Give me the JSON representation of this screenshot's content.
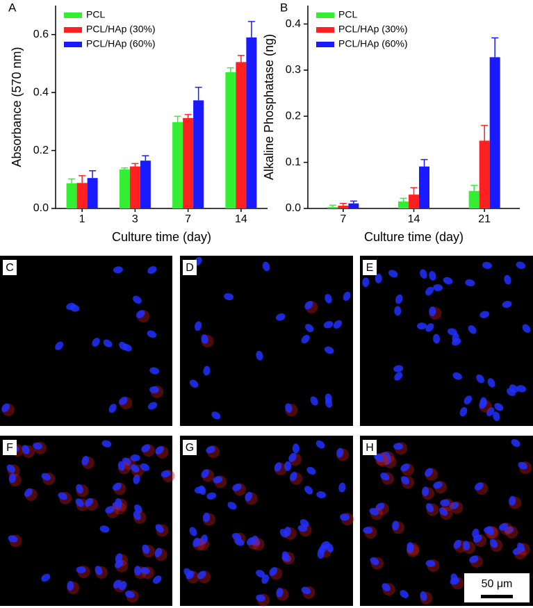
{
  "chart_data": [
    {
      "type": "bar",
      "panel_label": "A",
      "ylabel": "Absorbance (570 nm)",
      "xlabel": "Culture time (day)",
      "categories": [
        "1",
        "3",
        "7",
        "14"
      ],
      "series": [
        {
          "name": "PCL",
          "color": "#33ee33",
          "values": [
            0.087,
            0.135,
            0.298,
            0.47
          ],
          "errors": [
            0.015,
            0.005,
            0.02,
            0.015
          ]
        },
        {
          "name": "PCL/HAp (30%)",
          "color": "#ff2020",
          "values": [
            0.088,
            0.145,
            0.312,
            0.505
          ],
          "errors": [
            0.025,
            0.01,
            0.012,
            0.023
          ]
        },
        {
          "name": "PCL/HAp (60%)",
          "color": "#1a1aff",
          "values": [
            0.105,
            0.165,
            0.373,
            0.59
          ],
          "errors": [
            0.025,
            0.017,
            0.045,
            0.055
          ]
        }
      ],
      "ylim": [
        0,
        0.7
      ],
      "yticks": [
        {
          "value": 0,
          "label": "0.0"
        },
        0.2,
        0.4,
        0.6
      ],
      "legend": "upper-left"
    },
    {
      "type": "bar",
      "panel_label": "B",
      "ylabel": "Alkaline Phosphatase (ng)",
      "xlabel": "Culture time (day)",
      "categories": [
        "7",
        "14",
        "21"
      ],
      "series": [
        {
          "name": "PCL",
          "color": "#33ee33",
          "values": [
            0.003,
            0.015,
            0.038
          ],
          "errors": [
            0.004,
            0.007,
            0.012
          ]
        },
        {
          "name": "PCL/HAp (30%)",
          "color": "#ff2020",
          "values": [
            0.006,
            0.03,
            0.147
          ],
          "errors": [
            0.005,
            0.015,
            0.033
          ]
        },
        {
          "name": "PCL/HAp (60%)",
          "color": "#1a1aff",
          "values": [
            0.011,
            0.091,
            0.328
          ],
          "errors": [
            0.005,
            0.015,
            0.042
          ]
        }
      ],
      "ylim": [
        0,
        0.44
      ],
      "yticks": [
        {
          "value": 0,
          "label": "0.0"
        },
        0.1,
        0.2,
        0.3,
        0.4
      ],
      "legend": "upper-left"
    }
  ],
  "panels": [
    "C",
    "D",
    "E",
    "F",
    "G",
    "H"
  ],
  "scale_bar": "50 μm"
}
